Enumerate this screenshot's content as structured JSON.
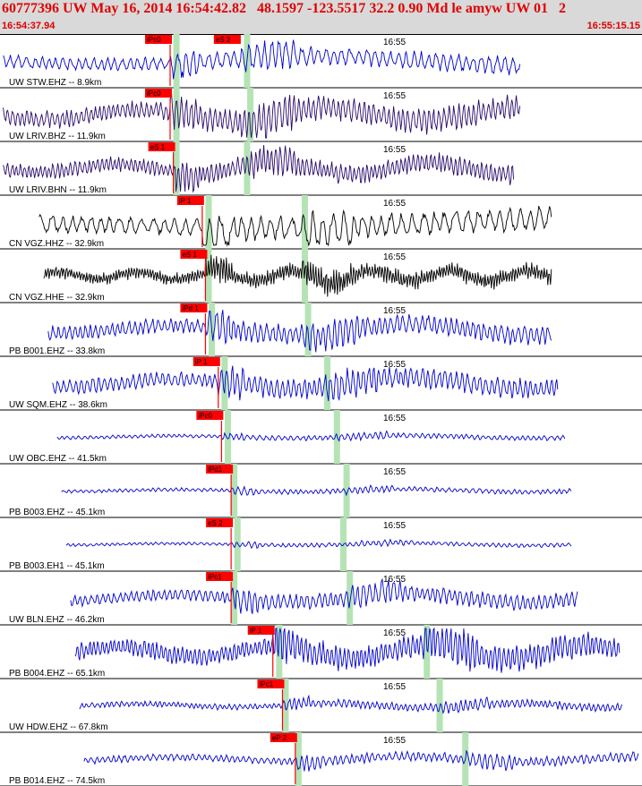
{
  "header": {
    "title": "60777396 UW May 16, 2014 16:54:42.82   48.1597 -123.5517 32.2 0.90 Md le amyw UW 01   2",
    "start_time": "16:54:37.94",
    "end_time": "16:55:15.15"
  },
  "colors": {
    "blue_trace": "#0000cc",
    "black_trace": "#000000",
    "purple_trace": "#2a0a6a",
    "pick_red": "#ff0000",
    "window_green": "#b5e3b5"
  },
  "chart_data": {
    "type": "line",
    "title": "",
    "time_label": "16:55",
    "time_range": [
      "16:54:37.94",
      "16:55:15.15"
    ],
    "traces": [
      {
        "label": "UW STW.EHZ -- 8.9km",
        "pick": "iPc0",
        "pick2": "eS 2",
        "color": "blue",
        "amp": 0.22,
        "freq": 0.11,
        "p": 0.265,
        "s": 0.375,
        "green": [
          0.27,
          0.38
        ],
        "end": 0.81
      },
      {
        "label": "UW LRIV.BHZ -- 11.9km",
        "pick": "iPc0",
        "pick2": "",
        "color": "purple",
        "amp": 0.3,
        "freq": 0.25,
        "p": 0.265,
        "s": 0.375,
        "green": [
          0.27,
          0.385
        ],
        "end": 0.81
      },
      {
        "label": "UW LRIV.BHN -- 11.9km",
        "pick": "eS 1",
        "pick2": "",
        "color": "purple",
        "amp": 0.25,
        "freq": 0.3,
        "p": 0.27,
        "s": 0.38,
        "green": [
          0.27,
          0.38
        ],
        "end": 0.8
      },
      {
        "label": "CN VGZ.HHZ -- 32.9km",
        "pick": "iP 1",
        "pick2": "",
        "color": "black",
        "amp": 0.3,
        "freq": 0.05,
        "p": 0.315,
        "s": 0.47,
        "green": [
          0.32,
          0.47
        ],
        "end": 0.86
      },
      {
        "label": "CN VGZ.HHE -- 32.9km",
        "pick": "eS 1",
        "pick2": "",
        "color": "black",
        "amp": 0.22,
        "freq": 0.6,
        "p": 0.32,
        "s": 0.47,
        "green": [
          0.32,
          0.47
        ],
        "end": 0.86
      },
      {
        "label": "PB B001.EHZ -- 33.8km",
        "pick": "iPd 1",
        "pick2": "",
        "color": "blue",
        "amp": 0.25,
        "freq": 0.2,
        "p": 0.32,
        "s": 0.475,
        "green": [
          0.325,
          0.475
        ],
        "end": 0.86
      },
      {
        "label": "UW SQM.EHZ -- 38.6km",
        "pick": "iP 1",
        "pick2": "",
        "color": "blue",
        "amp": 0.25,
        "freq": 0.2,
        "p": 0.34,
        "s": 0.505,
        "green": [
          0.345,
          0.505
        ],
        "end": 0.87
      },
      {
        "label": "UW OBC.EHZ -- 41.5km",
        "pick": "iPc0",
        "pick2": "",
        "color": "blue",
        "amp": 0.06,
        "freq": 0.2,
        "p": 0.345,
        "s": 0.52,
        "green": [
          0.35,
          0.52
        ],
        "end": 0.88
      },
      {
        "label": "PB B003.EHZ -- 45.1km",
        "pick": "iPd1",
        "pick2": "",
        "color": "blue",
        "amp": 0.06,
        "freq": 0.2,
        "p": 0.36,
        "s": 0.535,
        "green": [
          0.36,
          0.535
        ],
        "end": 0.89
      },
      {
        "label": "PB B003.EH1 -- 45.1km",
        "pick": "eS 2",
        "pick2": "",
        "color": "blue",
        "amp": 0.05,
        "freq": 0.2,
        "p": 0.36,
        "s": 0.56,
        "green": [
          0.365,
          0.53
        ],
        "end": 0.89
      },
      {
        "label": "UW BLN.EHZ -- 46.2km",
        "pick": "iPc1",
        "pick2": "",
        "color": "blue",
        "amp": 0.2,
        "freq": 0.2,
        "p": 0.36,
        "s": 0.54,
        "green": [
          0.36,
          0.54
        ],
        "end": 0.9
      },
      {
        "label": "PB B004.EHZ -- 65.1km",
        "pick": "iP 1",
        "pick2": "",
        "color": "blue",
        "amp": 0.32,
        "freq": 0.3,
        "p": 0.425,
        "s": 0.66,
        "green": [
          0.43,
          0.66
        ],
        "end": 0.965
      },
      {
        "label": "UW HDW.EHZ -- 67.8km",
        "pick": "iPc1",
        "pick2": "",
        "color": "blue",
        "amp": 0.1,
        "freq": 0.25,
        "p": 0.44,
        "s": 0.68,
        "green": [
          0.44,
          0.68
        ],
        "end": 0.97
      },
      {
        "label": "PB B014.EHZ -- 74.5km",
        "pick": "eP 2",
        "pick2": "",
        "color": "blue",
        "amp": 0.12,
        "freq": 0.2,
        "p": 0.46,
        "s": 0.72,
        "green": [
          0.46,
          0.72
        ],
        "end": 0.995
      }
    ]
  }
}
